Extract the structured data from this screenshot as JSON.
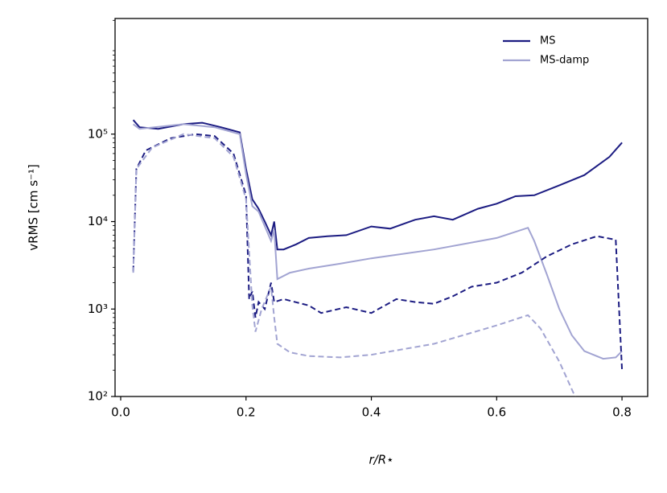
{
  "chart_data": {
    "type": "line",
    "xlabel": "r/R⋆",
    "ylabel": "vRMS [cm s⁻¹]",
    "log_y": true,
    "legend": "upper right",
    "xlim": [
      -0.009,
      0.841
    ],
    "xticks": [
      {
        "value": 0,
        "label": "0.0"
      },
      0.2,
      0.4,
      0.6,
      0.8
    ],
    "ylim": [
      100,
      2100000
    ],
    "yticks": [
      {
        "value": 100,
        "label": "10²"
      },
      {
        "value": 1000,
        "label": "10³"
      },
      {
        "value": 10000,
        "label": "10⁴"
      },
      {
        "value": 100000,
        "label": "10⁵"
      }
    ],
    "series": [
      {
        "name": "MS",
        "color": "#1c1c82",
        "linestyle": "solid",
        "x": [
          0.02,
          0.03,
          0.06,
          0.1,
          0.13,
          0.16,
          0.19,
          0.2,
          0.21,
          0.22,
          0.23,
          0.24,
          0.245,
          0.25,
          0.26,
          0.28,
          0.3,
          0.33,
          0.36,
          0.4,
          0.43,
          0.47,
          0.5,
          0.53,
          0.57,
          0.6,
          0.63,
          0.66,
          0.7,
          0.74,
          0.78,
          0.8
        ],
        "values": [
          145000,
          120000,
          115000,
          130000,
          135000,
          120000,
          105000,
          40000,
          18000,
          14000,
          10000,
          7000,
          10000,
          4800,
          4800,
          5500,
          6500,
          6800,
          7000,
          8800,
          8300,
          10500,
          11500,
          10500,
          14000,
          16000,
          19500,
          20000,
          26000,
          34000,
          55000,
          80000
        ]
      },
      {
        "name": "MS-damp",
        "color": "#a2a4d2",
        "linestyle": "solid",
        "x": [
          0.02,
          0.03,
          0.1,
          0.15,
          0.19,
          0.2,
          0.21,
          0.22,
          0.24,
          0.245,
          0.25,
          0.27,
          0.3,
          0.35,
          0.4,
          0.5,
          0.6,
          0.65,
          0.66,
          0.68,
          0.7,
          0.72,
          0.74,
          0.77,
          0.79,
          0.8
        ],
        "values": [
          130000,
          115000,
          130000,
          120000,
          100000,
          35000,
          15000,
          13000,
          6000,
          8000,
          2200,
          2600,
          2900,
          3300,
          3800,
          4800,
          6500,
          8500,
          6000,
          2500,
          1000,
          500,
          330,
          270,
          280,
          330
        ]
      },
      {
        "color": "#1c1c82",
        "linestyle": "dashed",
        "x": [
          0.02,
          0.025,
          0.04,
          0.08,
          0.12,
          0.15,
          0.18,
          0.2,
          0.205,
          0.21,
          0.215,
          0.22,
          0.23,
          0.24,
          0.245,
          0.26,
          0.3,
          0.32,
          0.36,
          0.4,
          0.44,
          0.47,
          0.5,
          0.53,
          0.56,
          0.6,
          0.64,
          0.68,
          0.72,
          0.76,
          0.79,
          0.8
        ],
        "values": [
          2700,
          40000,
          65000,
          90000,
          100000,
          95000,
          60000,
          20000,
          1300,
          1600,
          800,
          1200,
          1000,
          2000,
          1200,
          1300,
          1100,
          900,
          1050,
          900,
          1300,
          1200,
          1150,
          1400,
          1800,
          2000,
          2600,
          4000,
          5500,
          6800,
          6200,
          200
        ]
      },
      {
        "color": "#a2a4d2",
        "linestyle": "dashed",
        "x": [
          0.02,
          0.025,
          0.05,
          0.1,
          0.15,
          0.18,
          0.2,
          0.21,
          0.215,
          0.225,
          0.24,
          0.245,
          0.25,
          0.27,
          0.3,
          0.35,
          0.4,
          0.5,
          0.6,
          0.65,
          0.67,
          0.7,
          0.725
        ],
        "values": [
          2600,
          40000,
          70000,
          100000,
          90000,
          55000,
          18000,
          1100,
          550,
          1000,
          1800,
          800,
          400,
          320,
          290,
          280,
          300,
          400,
          650,
          850,
          600,
          250,
          100
        ]
      }
    ]
  }
}
